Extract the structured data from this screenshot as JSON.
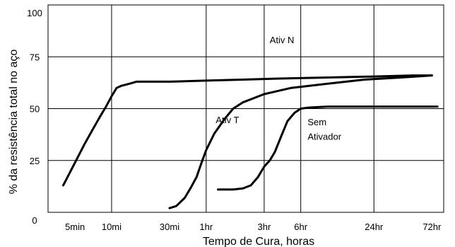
{
  "chart_data": {
    "type": "line",
    "title": "",
    "xlabel": "Tempo de Cura, horas",
    "ylabel": "% da resistência total no aço",
    "x_scale": "log",
    "xlim": [
      3,
      5400
    ],
    "ylim": [
      0,
      100
    ],
    "x_ticks": [
      {
        "label": "5min",
        "value": 5
      },
      {
        "label": "10mi",
        "value": 10
      },
      {
        "label": "30mi",
        "value": 30
      },
      {
        "label": "1hr",
        "value": 60
      },
      {
        "label": "3hr",
        "value": 180
      },
      {
        "label": "6hr",
        "value": 360
      },
      {
        "label": "24hr",
        "value": 1440
      },
      {
        "label": "72hr",
        "value": 4320
      }
    ],
    "y_ticks": [
      {
        "label": "0",
        "value": 0
      },
      {
        "label": "25",
        "value": 25
      },
      {
        "label": "50",
        "value": 50
      },
      {
        "label": "75",
        "value": 75
      },
      {
        "label": "100",
        "value": 100
      }
    ],
    "v_grid": [
      10,
      60,
      180,
      360,
      1440
    ],
    "h_grid": [
      25,
      50,
      75
    ],
    "x_unit": "minutes",
    "annotations": [
      {
        "text": "Ativ N",
        "x": 200,
        "y": 81.5
      },
      {
        "text": "Ativ T",
        "x": 72,
        "y": 43
      },
      {
        "text": "Sem",
        "x": 410,
        "y": 42
      },
      {
        "text": "Ativador",
        "x": 410,
        "y": 35
      }
    ],
    "series": [
      {
        "points": [
          [
            4,
            13
          ],
          [
            5,
            24
          ],
          [
            6,
            33
          ],
          [
            7,
            40
          ],
          [
            8,
            46
          ],
          [
            9,
            51
          ],
          [
            10,
            56
          ],
          [
            11,
            60
          ],
          [
            12,
            61
          ],
          [
            14,
            62
          ],
          [
            16,
            63
          ],
          [
            20,
            63
          ],
          [
            30,
            63
          ],
          [
            60,
            63.5
          ],
          [
            120,
            64
          ],
          [
            240,
            64.5
          ],
          [
            600,
            65
          ],
          [
            1440,
            65.5
          ],
          [
            3000,
            66
          ],
          [
            4320,
            66
          ]
        ]
      },
      {
        "points": [
          [
            30,
            2
          ],
          [
            34,
            3
          ],
          [
            40,
            7
          ],
          [
            45,
            12
          ],
          [
            50,
            17
          ],
          [
            55,
            24
          ],
          [
            60,
            30
          ],
          [
            70,
            38
          ],
          [
            85,
            45
          ],
          [
            100,
            50
          ],
          [
            120,
            53
          ],
          [
            180,
            57
          ],
          [
            300,
            60
          ],
          [
            600,
            62
          ],
          [
            1200,
            64
          ],
          [
            2400,
            65
          ],
          [
            4320,
            66
          ]
        ]
      },
      {
        "points": [
          [
            75,
            11
          ],
          [
            100,
            11
          ],
          [
            120,
            11.5
          ],
          [
            140,
            13
          ],
          [
            160,
            17
          ],
          [
            180,
            22
          ],
          [
            200,
            25
          ],
          [
            220,
            29
          ],
          [
            250,
            37
          ],
          [
            280,
            44
          ],
          [
            320,
            48
          ],
          [
            360,
            50
          ],
          [
            420,
            50.5
          ],
          [
            600,
            51
          ],
          [
            1440,
            51
          ],
          [
            3000,
            51
          ],
          [
            4800,
            51
          ]
        ]
      }
    ]
  }
}
